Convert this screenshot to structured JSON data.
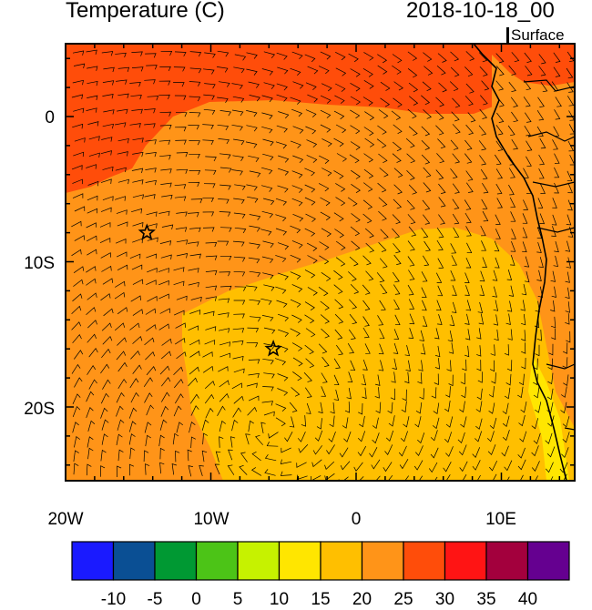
{
  "header": {
    "title": "Temperature (C)",
    "time": "2018-10-18_00",
    "level": "Surface"
  },
  "axes": {
    "y_ticks": [
      "0",
      "10S",
      "20S"
    ],
    "x_ticks": [
      "20W",
      "10W",
      "0",
      "10E"
    ]
  },
  "markers": [
    {
      "name": "star-1",
      "lon": -14.4,
      "lat": -8.0
    },
    {
      "name": "star-2",
      "lon": -5.7,
      "lat": -16.0
    }
  ],
  "colorbar": {
    "colors": [
      "#1a1aff",
      "#0a4f94",
      "#009933",
      "#4cc417",
      "#c6f200",
      "#ffe600",
      "#ffbf00",
      "#ff9418",
      "#ff4d0a",
      "#ff1414",
      "#a3003d",
      "#650090"
    ],
    "labels": [
      "-10",
      "-5",
      "0",
      "5",
      "10",
      "15",
      "20",
      "25",
      "30",
      "35",
      "40"
    ]
  },
  "map_colors": {
    "orange_red": "#ff4d0a",
    "dark_orange": "#ff9418",
    "orange": "#ffbf00",
    "yellow": "#ffe600"
  }
}
